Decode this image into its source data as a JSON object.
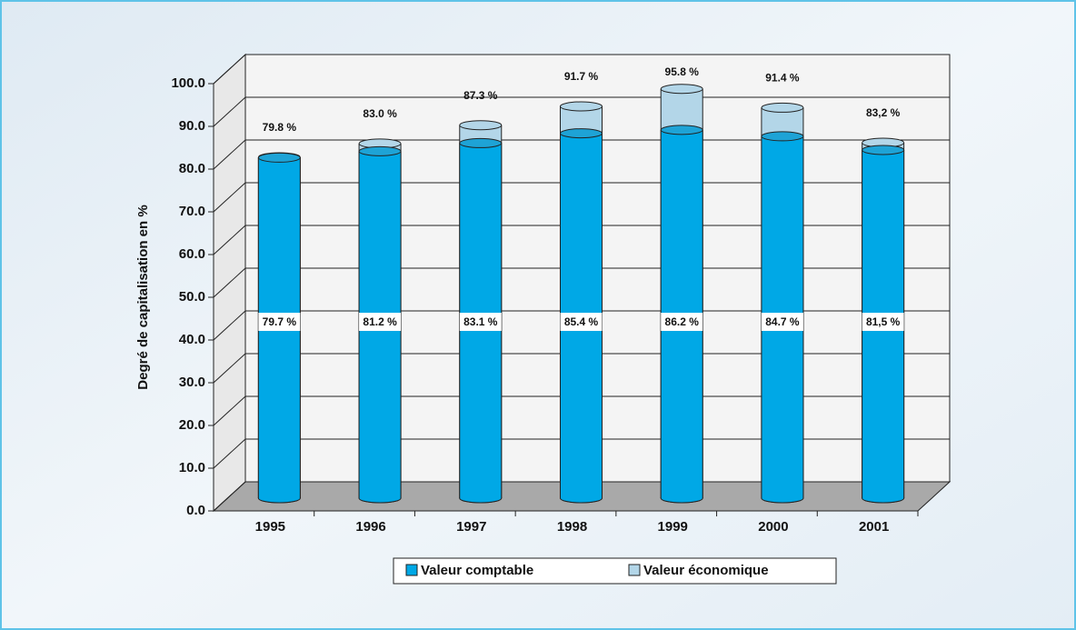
{
  "chart_data": {
    "type": "bar",
    "y_label": "Degré de capitalisation en %",
    "categories": [
      "1995",
      "1996",
      "1997",
      "1998",
      "1999",
      "2000",
      "2001"
    ],
    "series": [
      {
        "name": "Valeur économique",
        "color": "#b3d6e8",
        "values": [
          79.8,
          83.0,
          87.3,
          91.7,
          95.8,
          91.4,
          83.2
        ],
        "value_labels": [
          "79.8 %",
          "83.0 %",
          "87.3 %",
          "91.7 %",
          "95.8 %",
          "91.4 %",
          "83,2 %"
        ]
      },
      {
        "name": "Valeur comptable",
        "color": "#00a8e6",
        "values": [
          79.7,
          81.2,
          83.1,
          85.4,
          86.2,
          84.7,
          81.5
        ],
        "value_labels": [
          "79.7 %",
          "81.2 %",
          "83.1 %",
          "85.4 %",
          "86.2 %",
          "84.7 %",
          "81,5 %"
        ]
      }
    ],
    "ylim": [
      0,
      100
    ],
    "yticks": [
      {
        "value": 0,
        "label": "0.0"
      },
      {
        "value": 10,
        "label": "10.0"
      },
      {
        "value": 20,
        "label": "20.0"
      },
      {
        "value": 30,
        "label": "30.0"
      },
      {
        "value": 40,
        "label": "40.0"
      },
      {
        "value": 50,
        "label": "50.0"
      },
      {
        "value": 60,
        "label": "60.0"
      },
      {
        "value": 70,
        "label": "70.0"
      },
      {
        "value": 80,
        "label": "80.0"
      },
      {
        "value": 90,
        "label": "90.0"
      },
      {
        "value": 100,
        "label": "100.0"
      }
    ],
    "grid": true
  }
}
